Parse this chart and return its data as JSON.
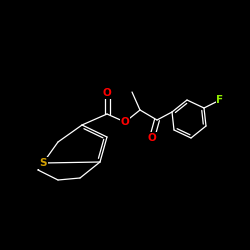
{
  "background_color": "#000000",
  "bond_color": "#ffffff",
  "atom_colors": {
    "O": "#ff0000",
    "S": "#d4a000",
    "F": "#90ee00"
  },
  "figsize": [
    2.5,
    2.5
  ],
  "dpi": 100
}
